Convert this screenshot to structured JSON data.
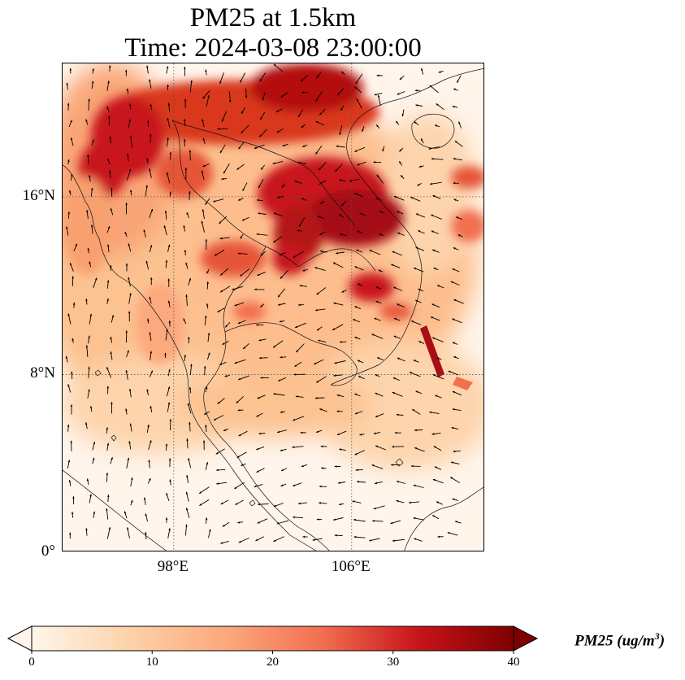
{
  "title": {
    "line1": "PM25 at 1.5km",
    "line2": "Time: 2024-03-08 23:00:00"
  },
  "map": {
    "lat_ticks": [
      {
        "value": 16,
        "label": "16°N"
      },
      {
        "value": 8,
        "label": "8°N"
      },
      {
        "value": 0,
        "label": "0°"
      }
    ],
    "lon_ticks": [
      {
        "value": 98,
        "label": "98°E"
      },
      {
        "value": 106,
        "label": "106°E"
      }
    ],
    "extent": {
      "lon_min": 93,
      "lon_max": 112,
      "lat_min": 0,
      "lat_max": 22
    },
    "hotspots_pm25": [
      {
        "lon": 102.6,
        "lat": 17.0,
        "value": 38
      },
      {
        "lon": 104.5,
        "lat": 15.6,
        "value": 40
      },
      {
        "lon": 102.2,
        "lat": 14.4,
        "value": 37
      },
      {
        "lon": 101.8,
        "lat": 20.6,
        "value": 35
      },
      {
        "lon": 103.0,
        "lat": 21.3,
        "value": 36
      },
      {
        "lon": 99.5,
        "lat": 21.2,
        "value": 32
      },
      {
        "lon": 95.8,
        "lat": 19.5,
        "value": 33
      },
      {
        "lon": 105.0,
        "lat": 12.5,
        "value": 34
      },
      {
        "lon": 109.0,
        "lat": 10.2,
        "value": 38
      },
      {
        "lon": 110.5,
        "lat": 7.5,
        "value": 30
      },
      {
        "lon": 111.0,
        "lat": 17.0,
        "value": 30
      }
    ]
  },
  "colorbar": {
    "label": "PM25 (ug/m",
    "label_exp": "3",
    "label_close": ")",
    "min": 0,
    "max": 40,
    "ticks": [
      "0",
      "10",
      "20",
      "30",
      "40"
    ],
    "extend": "both",
    "colors": [
      "#fff5eb",
      "#fdd3a9",
      "#fca97d",
      "#f27050",
      "#c8141b",
      "#7f0000"
    ]
  }
}
